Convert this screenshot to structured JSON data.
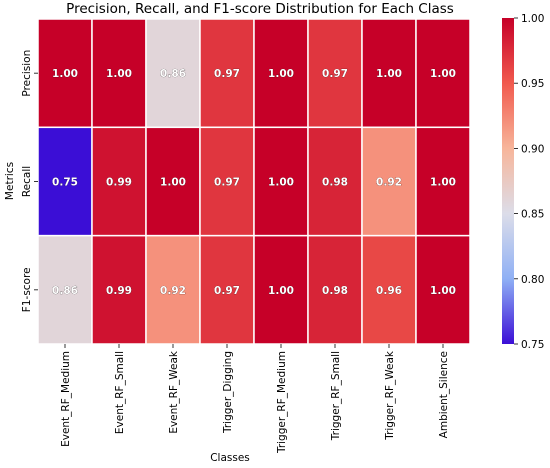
{
  "chart_data": {
    "type": "heatmap",
    "title": "Precision, Recall, and F1-score Distribution for Each Class",
    "xlabel": "Classes",
    "ylabel": "Metrics",
    "columns": [
      "Event_RF_Medium",
      "Event_RF_Small",
      "Event_RF_Weak",
      "Trigger_Digging",
      "Trigger_RF_Medium",
      "Trigger_RF_Small",
      "Trigger_RF_Weak",
      "Ambient_Silence"
    ],
    "rows": [
      "Precision",
      "Recall",
      "F1-score"
    ],
    "values": [
      [
        1.0,
        1.0,
        0.86,
        0.97,
        1.0,
        0.97,
        1.0,
        1.0
      ],
      [
        0.75,
        0.99,
        1.0,
        0.97,
        1.0,
        0.98,
        0.92,
        1.0
      ],
      [
        0.86,
        0.99,
        0.92,
        0.97,
        1.0,
        0.98,
        0.96,
        1.0
      ]
    ],
    "value_labels": [
      [
        "1.00",
        "1.00",
        "0.86",
        "0.97",
        "1.00",
        "0.97",
        "1.00",
        "1.00"
      ],
      [
        "0.75",
        "0.99",
        "1.00",
        "0.97",
        "1.00",
        "0.98",
        "0.92",
        "1.00"
      ],
      [
        "0.86",
        "0.99",
        "0.92",
        "0.97",
        "1.00",
        "0.98",
        "0.96",
        "1.00"
      ]
    ],
    "colormap": "coolwarm",
    "vmin": 0.75,
    "vmax": 1.0,
    "colorbar_ticks": [
      "0.75",
      "0.80",
      "0.85",
      "0.90",
      "0.95",
      "1.00"
    ],
    "colorbar_tick_values": [
      0.75,
      0.8,
      0.85,
      0.9,
      0.95,
      1.0
    ],
    "legend_position": "right"
  }
}
